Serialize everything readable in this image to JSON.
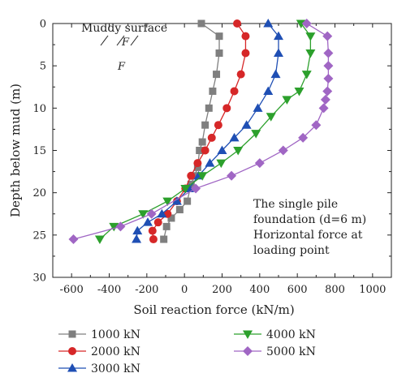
{
  "chart_data": {
    "type": "scatter",
    "xlabel": "Soil reaction force (kN/m)",
    "ylabel": "Depth below mud (m)",
    "xlim": [
      -700,
      1100
    ],
    "ylim": [
      0,
      30
    ],
    "y_inverted": true,
    "x_ticks": [
      -600,
      -400,
      -200,
      0,
      200,
      400,
      600,
      800,
      1000
    ],
    "y_ticks": [
      0,
      5,
      10,
      15,
      20,
      25,
      30
    ],
    "grid": false,
    "legend_position": "bottom",
    "annotations": {
      "surface_label": "Muddy surface",
      "force_mark_1": "F",
      "force_mark_2": "F",
      "note_line1": "The single pile",
      "note_line2": "foundation (d=6 m)",
      "note_line3": "Horizontal force at",
      "note_line4": "loading point"
    },
    "series": [
      {
        "name": "1000 kN",
        "color": "#7f7f7f",
        "marker": "square",
        "x": [
          90,
          185,
          185,
          170,
          150,
          130,
          110,
          95,
          80,
          70,
          55,
          35,
          15,
          -25,
          -70,
          -95,
          -110
        ],
        "y": [
          0,
          1.5,
          3.5,
          6,
          8,
          10,
          12,
          14,
          15,
          17,
          18,
          19,
          21,
          22,
          23,
          24,
          25.5
        ]
      },
      {
        "name": "2000 kN",
        "color": "#d62728",
        "marker": "circle",
        "x": [
          280,
          325,
          325,
          300,
          265,
          225,
          180,
          145,
          110,
          70,
          35,
          5,
          -40,
          -90,
          -140,
          -170,
          -165
        ],
        "y": [
          0,
          1.5,
          3.5,
          6,
          8,
          10,
          12,
          13.5,
          15,
          16.5,
          18,
          19.5,
          21,
          22.5,
          23.5,
          24.5,
          25.5
        ]
      },
      {
        "name": "3000 kN",
        "color": "#1f4fb4",
        "marker": "triangle",
        "x": [
          445,
          500,
          500,
          485,
          445,
          390,
          330,
          265,
          200,
          135,
          75,
          25,
          -40,
          -120,
          -195,
          -250,
          -255
        ],
        "y": [
          0,
          1.5,
          3.5,
          6,
          8,
          10,
          12,
          13.5,
          15,
          16.5,
          18,
          19.5,
          21,
          22.5,
          23.5,
          24.5,
          25.5
        ]
      },
      {
        "name": "4000 kN",
        "color": "#2ca02c",
        "marker": "triangle-down",
        "x": [
          620,
          670,
          670,
          650,
          610,
          545,
          460,
          380,
          285,
          195,
          95,
          5,
          -90,
          -220,
          -375,
          -450
        ],
        "y": [
          0,
          1.5,
          3.5,
          6,
          8,
          9,
          11,
          13,
          15,
          16.5,
          18,
          19.5,
          21,
          22.5,
          24,
          25.5
        ]
      },
      {
        "name": "5000 kN",
        "color": "#a066c4",
        "marker": "diamond",
        "x": [
          650,
          760,
          765,
          765,
          765,
          760,
          750,
          740,
          700,
          630,
          525,
          400,
          250,
          60,
          -175,
          -340,
          -590
        ],
        "y": [
          0,
          1.5,
          3.5,
          5,
          6.5,
          8,
          9,
          10,
          12,
          13.5,
          15,
          16.5,
          18,
          19.5,
          22.5,
          24,
          25.5
        ]
      }
    ]
  }
}
